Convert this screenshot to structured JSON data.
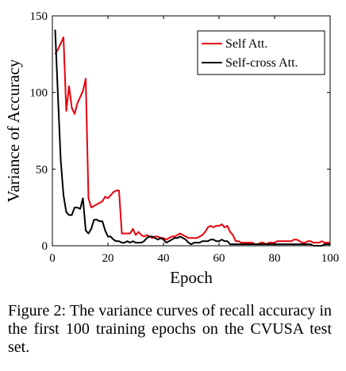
{
  "chart_data": {
    "type": "line",
    "xlabel": "Epoch",
    "ylabel": "Variance of Accuracy",
    "xlim": [
      0,
      100
    ],
    "ylim": [
      0,
      150
    ],
    "xticks": [
      0,
      20,
      40,
      60,
      80,
      100
    ],
    "yticks": [
      0,
      50,
      100,
      150
    ],
    "grid": false,
    "legend_position": "top-right",
    "series": [
      {
        "name": "Self Att.",
        "color": "#e8000b",
        "x": [
          1,
          2,
          3,
          4,
          5,
          6,
          7,
          8,
          9,
          10,
          11,
          12,
          13,
          14,
          15,
          16,
          17,
          18,
          19,
          20,
          21,
          22,
          23,
          24,
          25,
          26,
          27,
          28,
          29,
          30,
          31,
          32,
          33,
          34,
          35,
          36,
          37,
          38,
          39,
          40,
          41,
          42,
          43,
          44,
          45,
          46,
          47,
          48,
          49,
          50,
          51,
          52,
          53,
          54,
          55,
          56,
          57,
          58,
          59,
          60,
          61,
          62,
          63,
          64,
          65,
          66,
          67,
          68,
          69,
          70,
          71,
          72,
          73,
          74,
          75,
          76,
          77,
          78,
          79,
          80,
          81,
          82,
          83,
          84,
          85,
          86,
          87,
          88,
          89,
          90,
          91,
          92,
          93,
          94,
          95,
          96,
          97,
          98,
          99,
          100
        ],
        "y": [
          125,
          128,
          132,
          136,
          88,
          104,
          90,
          86,
          93,
          97,
          101,
          109,
          31,
          25,
          26,
          27,
          28,
          29,
          32,
          31,
          33,
          35,
          36,
          36,
          8,
          8,
          8,
          8,
          11,
          7,
          9,
          7,
          6,
          7,
          6,
          5,
          6,
          6,
          5,
          5,
          4,
          5,
          6,
          6,
          7,
          8,
          7,
          6,
          5,
          5,
          5,
          5,
          6,
          7,
          9,
          12,
          13,
          12,
          13,
          13,
          14,
          12,
          13,
          9,
          7,
          3,
          3,
          2,
          2,
          2,
          2,
          2,
          1,
          1,
          2,
          2,
          1,
          2,
          2,
          2,
          3,
          3,
          3,
          3,
          3,
          3,
          4,
          4,
          3,
          2,
          2,
          3,
          3,
          2,
          2,
          2,
          3,
          2,
          2,
          2
        ]
      },
      {
        "name": "Self-cross Att.",
        "color": "#000000",
        "x": [
          1,
          2,
          3,
          4,
          5,
          6,
          7,
          8,
          9,
          10,
          11,
          12,
          13,
          14,
          15,
          16,
          17,
          18,
          19,
          20,
          21,
          22,
          23,
          24,
          25,
          26,
          27,
          28,
          29,
          30,
          31,
          32,
          33,
          34,
          35,
          36,
          37,
          38,
          39,
          40,
          41,
          42,
          43,
          44,
          45,
          46,
          47,
          48,
          49,
          50,
          51,
          52,
          53,
          54,
          55,
          56,
          57,
          58,
          59,
          60,
          61,
          62,
          63,
          64,
          65,
          66,
          67,
          68,
          69,
          70,
          71,
          72,
          73,
          74,
          75,
          76,
          77,
          78,
          79,
          80,
          81,
          82,
          83,
          84,
          85,
          86,
          87,
          88,
          89,
          90,
          91,
          92,
          93,
          94,
          95,
          96,
          97,
          98,
          99,
          100
        ],
        "y": [
          141,
          98,
          56,
          33,
          22,
          20,
          20,
          25,
          25,
          24,
          31,
          10,
          8,
          11,
          17,
          17,
          16,
          16,
          10,
          6,
          6,
          4,
          3,
          3,
          2,
          2,
          3,
          2,
          3,
          2,
          2,
          2,
          3,
          5,
          6,
          6,
          5,
          4,
          5,
          4,
          2,
          3,
          4,
          5,
          5,
          6,
          5,
          4,
          2,
          1,
          2,
          2,
          2,
          3,
          3,
          3,
          4,
          4,
          3,
          3,
          4,
          3,
          3,
          1,
          1,
          1,
          1,
          1,
          1,
          1,
          1,
          1,
          1,
          1,
          1,
          1,
          1,
          1,
          1,
          1,
          1,
          1,
          1,
          1,
          1,
          1,
          1,
          1,
          1,
          1,
          1,
          1,
          1,
          0,
          0,
          0,
          0,
          1,
          1,
          1
        ]
      }
    ]
  },
  "caption": "Figure 2: The variance curves of recall accuracy in the first 100 training epochs on the CVUSA test set."
}
